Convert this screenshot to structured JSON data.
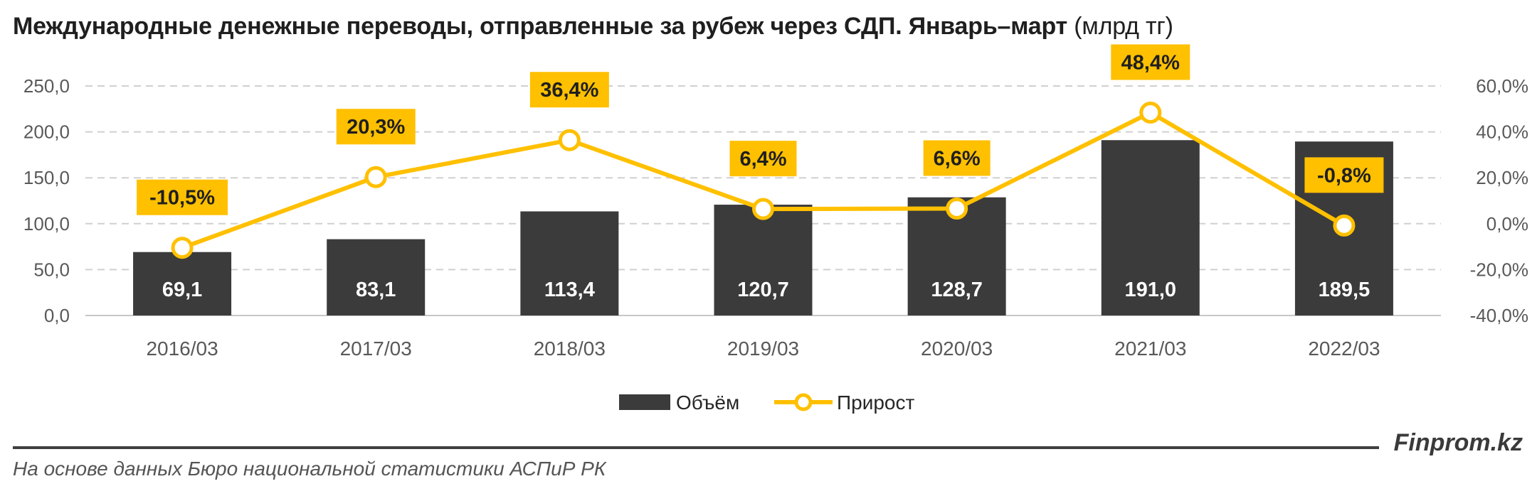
{
  "title": {
    "main": "Международные денежные переводы, отправленные за рубеж через СДП. Январь–март",
    "unit": "(млрд тг)"
  },
  "colors": {
    "bar": "#3b3b3b",
    "line": "#ffc000",
    "label_bg": "#ffc000",
    "grid": "#d0d0d0"
  },
  "chart_data": {
    "type": "bar",
    "categories": [
      "2016/03",
      "2017/03",
      "2018/03",
      "2019/03",
      "2020/03",
      "2021/03",
      "2022/03"
    ],
    "series": [
      {
        "name": "Объём",
        "type": "bar",
        "axis": "left",
        "values": [
          69.1,
          83.1,
          113.4,
          120.7,
          128.7,
          191.0,
          189.5
        ],
        "labels": [
          "69,1",
          "83,1",
          "113,4",
          "120,7",
          "128,7",
          "191,0",
          "189,5"
        ]
      },
      {
        "name": "Прирост",
        "type": "line",
        "axis": "right",
        "values": [
          -10.5,
          20.3,
          36.4,
          6.4,
          6.6,
          48.4,
          -0.8
        ],
        "labels": [
          "-10,5%",
          "20,3%",
          "36,4%",
          "6,4%",
          "6,6%",
          "48,4%",
          "-0,8%"
        ]
      }
    ],
    "y_left": {
      "range": [
        0,
        250
      ],
      "ticks": [
        "0,0",
        "50,0",
        "100,0",
        "150,0",
        "200,0",
        "250,0"
      ]
    },
    "y_right": {
      "range": [
        -40,
        60
      ],
      "ticks": [
        "-40,0%",
        "-20,0%",
        "0,0%",
        "20,0%",
        "40,0%",
        "60,0%"
      ]
    },
    "grid": true,
    "legend_position": "bottom"
  },
  "footer": {
    "brand": "Finprom.kz",
    "source": "На основе данных Бюро национальной статистики АСПиР РК"
  }
}
